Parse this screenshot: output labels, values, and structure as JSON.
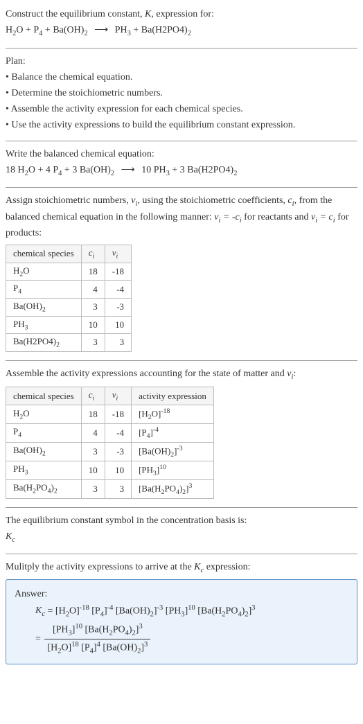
{
  "intro": {
    "l1_a": "Construct the equilibrium constant, ",
    "l1_b": ", expression for:"
  },
  "eq_unbalanced": {
    "r1": "H",
    "r1s": "2",
    "r1b": "O + P",
    "r2s": "4",
    "r3": " + Ba(OH)",
    "r3s": "2",
    "p1": "PH",
    "p1s": "3",
    "p2": " + Ba(H2PO4)",
    "p2s": "2"
  },
  "plan": {
    "title": "Plan:",
    "b1": "• Balance the chemical equation.",
    "b2": "• Determine the stoichiometric numbers.",
    "b3": "• Assemble the activity expression for each chemical species.",
    "b4": "• Use the activity expressions to build the equilibrium constant expression."
  },
  "balanced": {
    "title": "Write the balanced chemical equation:",
    "c1": "18 H",
    "c1s": "2",
    "c1b": "O + 4 P",
    "c2s": "4",
    "c3": " + 3 Ba(OH)",
    "c3s": "2",
    "p1": "10 PH",
    "p1s": "3",
    "p2": " + 3 Ba(H2PO4)",
    "p2s": "2"
  },
  "assign": {
    "l1": "Assign stoichiometric numbers, ",
    "l2": ", using the stoichiometric coefficients, ",
    "l3": ", from the balanced chemical equation in the following manner: ",
    "l4": " for reactants and ",
    "l5": " for products:"
  },
  "tab1": {
    "h1": "chemical species",
    "rows": [
      {
        "sp": "H",
        "sps": "2",
        "spb": "O",
        "c": "18",
        "v": "-18"
      },
      {
        "sp": "P",
        "sps": "4",
        "spb": "",
        "c": "4",
        "v": "-4"
      },
      {
        "sp": "Ba(OH)",
        "sps": "2",
        "spb": "",
        "c": "3",
        "v": "-3"
      },
      {
        "sp": "PH",
        "sps": "3",
        "spb": "",
        "c": "10",
        "v": "10"
      },
      {
        "sp": "Ba(H2PO4)",
        "sps": "2",
        "spb": "",
        "c": "3",
        "v": "3"
      }
    ]
  },
  "assemble": "Assemble the activity expressions accounting for the state of matter and ",
  "assemble2": ":",
  "tab2": {
    "h1": "chemical species",
    "h4": "activity expression",
    "rows": [
      {
        "sp": "H",
        "sps": "2",
        "spb": "O",
        "c": "18",
        "v": "-18",
        "ab": "[H",
        "as": "2",
        "ab2": "O]",
        "ae": "-18"
      },
      {
        "sp": "P",
        "sps": "4",
        "spb": "",
        "c": "4",
        "v": "-4",
        "ab": "[P",
        "as": "4",
        "ab2": "]",
        "ae": "-4"
      },
      {
        "sp": "Ba(OH)",
        "sps": "2",
        "spb": "",
        "c": "3",
        "v": "-3",
        "ab": "[Ba(OH)",
        "as": "2",
        "ab2": "]",
        "ae": "-3"
      },
      {
        "sp": "PH",
        "sps": "3",
        "spb": "",
        "c": "10",
        "v": "10",
        "ab": "[PH",
        "as": "3",
        "ab2": "]",
        "ae": "10"
      },
      {
        "sp": "Ba(H",
        "sps": "2",
        "spb": "PO",
        "sps2": "4",
        "spb2": ")",
        "sps3": "2",
        "c": "3",
        "v": "3",
        "ab": "[Ba(H",
        "as": "2",
        "ab2": "PO",
        "as2": "4",
        "ab3": ")",
        "as3": "2",
        "ab4": "]",
        "ae": "3"
      }
    ]
  },
  "eqsym": {
    "l1": "The equilibrium constant symbol in the concentration basis is:"
  },
  "mult": "Mulitply the activity expressions to arrive at the ",
  "mult2": " expression:",
  "answer": {
    "label": "Answer:",
    "eq": " = ",
    "t1": "[H",
    "t1s": "2",
    "t1b": "O]",
    "t1e": "-18",
    "t2": " [P",
    "t2s": "4",
    "t2b": "]",
    "t2e": "-4",
    "t3": " [Ba(OH)",
    "t3s": "2",
    "t3b": "]",
    "t3e": "-3",
    "t4": " [PH",
    "t4s": "3",
    "t4b": "]",
    "t4e": "10",
    "t5": " [Ba(H",
    "t5s": "2",
    "t5b": "PO",
    "t5s2": "4",
    "t5b2": ")",
    "t5s3": "2",
    "t5b3": "]",
    "t5e": "3",
    "n1": "[PH",
    "n1s": "3",
    "n1b": "]",
    "n1e": "10",
    "n2": " [Ba(H",
    "n2s": "2",
    "n2b": "PO",
    "n2s2": "4",
    "n2b2": ")",
    "n2s3": "2",
    "n2b3": "]",
    "n2e": "3",
    "d1": "[H",
    "d1s": "2",
    "d1b": "O]",
    "d1e": "18",
    "d2": " [P",
    "d2s": "4",
    "d2b": "]",
    "d2e": "4",
    "d3": " [Ba(OH)",
    "d3s": "2",
    "d3b": "]",
    "d3e": "3"
  }
}
